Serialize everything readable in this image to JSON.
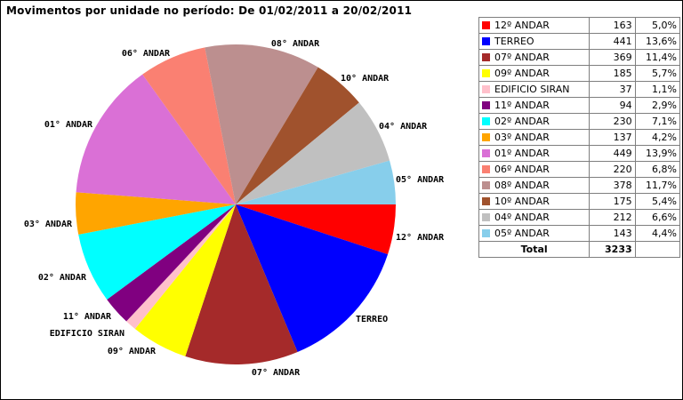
{
  "title": "Movimentos por unidade no período: De 01/02/2011 a 20/02/2011",
  "chart_data": {
    "type": "pie",
    "slices": [
      {
        "name": "12º ANDAR",
        "label": "12° ANDAR",
        "value": 163,
        "percent": "5,0%",
        "color": "#ff0000"
      },
      {
        "name": "TERREO",
        "label": "TERREO",
        "value": 441,
        "percent": "13,6%",
        "color": "#0000ff"
      },
      {
        "name": "07º ANDAR",
        "label": "07° ANDAR",
        "value": 369,
        "percent": "11,4%",
        "color": "#a52a2a"
      },
      {
        "name": "09º ANDAR",
        "label": "09° ANDAR",
        "value": 185,
        "percent": "5,7%",
        "color": "#ffff00"
      },
      {
        "name": "EDIFICIO SIRAN",
        "label": "EDIFICIO SIRAN",
        "value": 37,
        "percent": "1,1%",
        "color": "#ffc0cb"
      },
      {
        "name": "11º ANDAR",
        "label": "11° ANDAR",
        "value": 94,
        "percent": "2,9%",
        "color": "#800080"
      },
      {
        "name": "02º ANDAR",
        "label": "02° ANDAR",
        "value": 230,
        "percent": "7,1%",
        "color": "#00ffff"
      },
      {
        "name": "03º ANDAR",
        "label": "03° ANDAR",
        "value": 137,
        "percent": "4,2%",
        "color": "#ffa500"
      },
      {
        "name": "01º ANDAR",
        "label": "01° ANDAR",
        "value": 449,
        "percent": "13,9%",
        "color": "#da70d6"
      },
      {
        "name": "06º ANDAR",
        "label": "06° ANDAR",
        "value": 220,
        "percent": "6,8%",
        "color": "#fa8072"
      },
      {
        "name": "08º ANDAR",
        "label": "08° ANDAR",
        "value": 378,
        "percent": "11,7%",
        "color": "#bc8f8f"
      },
      {
        "name": "10º ANDAR",
        "label": "10° ANDAR",
        "value": 175,
        "percent": "5,4%",
        "color": "#a0522d"
      },
      {
        "name": "04º ANDAR",
        "label": "04° ANDAR",
        "value": 212,
        "percent": "6,6%",
        "color": "#c0c0c0"
      },
      {
        "name": "05º ANDAR",
        "label": "05° ANDAR",
        "value": 143,
        "percent": "4,4%",
        "color": "#87ceeb"
      }
    ],
    "total_label": "Total",
    "total_value": 3233
  }
}
